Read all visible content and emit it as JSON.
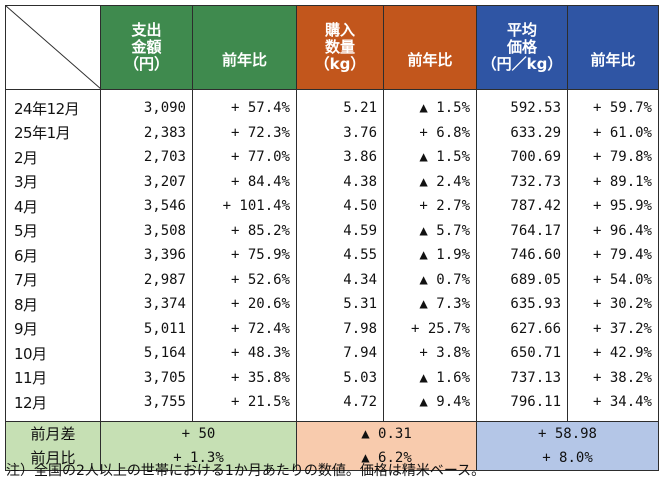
{
  "header": {
    "spend": "支出\n金額\n（円）",
    "spend_yoy": "前年比",
    "qty": "購入\n数量\n（kg）",
    "qty_yoy": "前年比",
    "price": "平均\n価格\n（円／kg）",
    "price_yoy": "前年比"
  },
  "rows": [
    {
      "month": "24年12月",
      "spend": "3,090",
      "spend_yoy": "+ 57.4%",
      "qty": "5.21",
      "qty_yoy": "▲ 1.5%",
      "price": "592.53",
      "price_yoy": "+ 59.7%"
    },
    {
      "month": "25年1月",
      "spend": "2,383",
      "spend_yoy": "+ 72.3%",
      "qty": "3.76",
      "qty_yoy": "+ 6.8%",
      "price": "633.29",
      "price_yoy": "+ 61.0%"
    },
    {
      "month": "2月",
      "spend": "2,703",
      "spend_yoy": "+ 77.0%",
      "qty": "3.86",
      "qty_yoy": "▲ 1.5%",
      "price": "700.69",
      "price_yoy": "+ 79.8%"
    },
    {
      "month": "3月",
      "spend": "3,207",
      "spend_yoy": "+ 84.4%",
      "qty": "4.38",
      "qty_yoy": "▲ 2.4%",
      "price": "732.73",
      "price_yoy": "+ 89.1%"
    },
    {
      "month": "4月",
      "spend": "3,546",
      "spend_yoy": "+ 101.4%",
      "qty": "4.50",
      "qty_yoy": "+ 2.7%",
      "price": "787.42",
      "price_yoy": "+ 95.9%"
    },
    {
      "month": "5月",
      "spend": "3,508",
      "spend_yoy": "+ 85.2%",
      "qty": "4.59",
      "qty_yoy": "▲ 5.7%",
      "price": "764.17",
      "price_yoy": "+ 96.4%"
    },
    {
      "month": "6月",
      "spend": "3,396",
      "spend_yoy": "+ 75.9%",
      "qty": "4.55",
      "qty_yoy": "▲ 1.9%",
      "price": "746.60",
      "price_yoy": "+ 79.4%"
    },
    {
      "month": "7月",
      "spend": "2,987",
      "spend_yoy": "+ 52.6%",
      "qty": "4.34",
      "qty_yoy": "▲ 0.7%",
      "price": "689.05",
      "price_yoy": "+ 54.0%"
    },
    {
      "month": "8月",
      "spend": "3,374",
      "spend_yoy": "+ 20.6%",
      "qty": "5.31",
      "qty_yoy": "▲ 7.3%",
      "price": "635.93",
      "price_yoy": "+ 30.2%"
    },
    {
      "month": "9月",
      "spend": "5,011",
      "spend_yoy": "+ 72.4%",
      "qty": "7.98",
      "qty_yoy": "+ 25.7%",
      "price": "627.66",
      "price_yoy": "+ 37.2%"
    },
    {
      "month": "10月",
      "spend": "5,164",
      "spend_yoy": "+ 48.3%",
      "qty": "7.94",
      "qty_yoy": "+ 3.8%",
      "price": "650.71",
      "price_yoy": "+ 42.9%"
    },
    {
      "month": "11月",
      "spend": "3,705",
      "spend_yoy": "+ 35.8%",
      "qty": "5.03",
      "qty_yoy": "▲ 1.6%",
      "price": "737.13",
      "price_yoy": "+ 38.2%"
    },
    {
      "month": "12月",
      "spend": "3,755",
      "spend_yoy": "+ 21.5%",
      "qty": "4.72",
      "qty_yoy": "▲ 9.4%",
      "price": "796.11",
      "price_yoy": "+ 34.4%"
    }
  ],
  "footer": {
    "diff_label": "前月差",
    "diff_spend": "+ 50",
    "diff_qty": "▲ 0.31",
    "diff_price": "+ 58.98",
    "ratio_label": "前月比",
    "ratio_spend": "+ 1.3%",
    "ratio_qty": "▲ 6.2%",
    "ratio_price": "+ 8.0%"
  },
  "note": "注）全国の2人以上の世帯における1か月あたりの数値。価格は精米ベース。",
  "colors": {
    "green": "#3f8a4e",
    "orange": "#c2561c",
    "blue": "#2f55a4",
    "green_light": "#c6e0b4",
    "orange_light": "#f8cbad",
    "blue_light": "#b4c6e7"
  }
}
